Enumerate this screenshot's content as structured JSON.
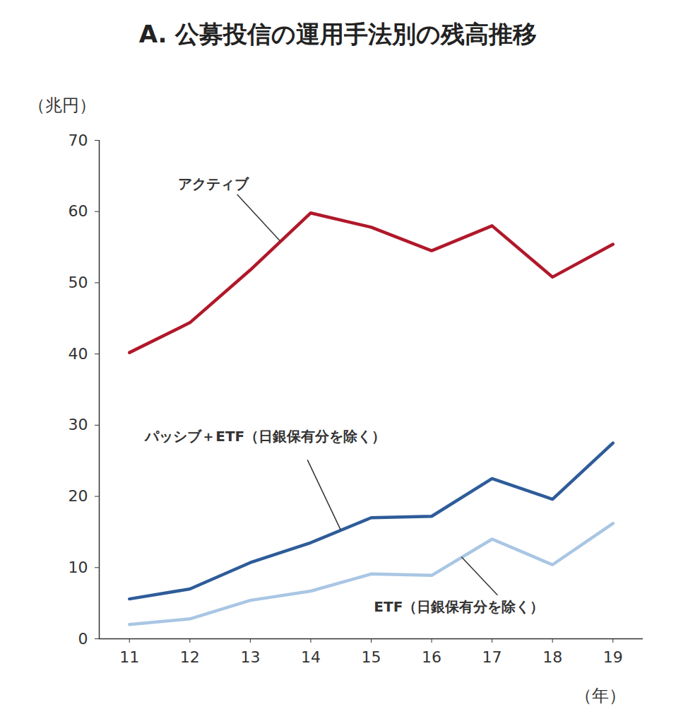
{
  "chart_data": {
    "type": "line",
    "title": "A. 公募投信の運用手法別の残高推移",
    "x_label": "（年）",
    "y_label": "（兆円）",
    "x": [
      11,
      12,
      13,
      14,
      15,
      16,
      17,
      18,
      19
    ],
    "xlim": [
      10.5,
      19.5
    ],
    "xticks": [
      11,
      12,
      13,
      14,
      15,
      16,
      17,
      18,
      19
    ],
    "ylim": [
      0,
      70
    ],
    "yticks": [
      0,
      10,
      20,
      30,
      40,
      50,
      60,
      70
    ],
    "grid": false,
    "series": [
      {
        "name": "アクティブ",
        "color": "#b0182a",
        "values": [
          40.2,
          44.4,
          51.8,
          59.8,
          57.8,
          54.5,
          58.0,
          50.8,
          55.4
        ]
      },
      {
        "name": "パッシブ＋ETF（日銀保有分を除く）",
        "color": "#2e5c99",
        "values": [
          5.6,
          7.0,
          10.7,
          13.5,
          17.0,
          17.2,
          22.5,
          19.6,
          27.5
        ]
      },
      {
        "name": "ETF（日銀保有分を除く）",
        "color": "#a9c6e4",
        "values": [
          2.0,
          2.8,
          5.4,
          6.7,
          9.1,
          8.9,
          14.0,
          10.4,
          16.2
        ]
      }
    ]
  }
}
